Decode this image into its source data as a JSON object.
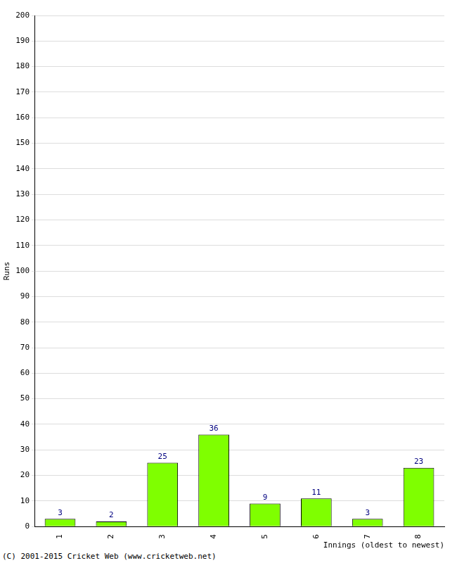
{
  "chart_data": {
    "type": "bar",
    "categories": [
      "1",
      "2",
      "3",
      "4",
      "5",
      "6",
      "7",
      "8"
    ],
    "values": [
      3,
      2,
      25,
      36,
      9,
      11,
      3,
      23
    ],
    "color": "#7fff00",
    "x_label": "Innings (oldest to newest)",
    "y_label": "Runs",
    "ylim": [
      0,
      200
    ],
    "yticks": [
      0,
      10,
      20,
      30,
      40,
      50,
      60,
      70,
      80,
      90,
      100,
      110,
      120,
      130,
      140,
      150,
      160,
      170,
      180,
      190,
      200
    ],
    "grid": true,
    "data_labels": true,
    "annotations": [
      "(C) 2001-2015 Cricket Web (www.cricketweb.net)"
    ]
  }
}
